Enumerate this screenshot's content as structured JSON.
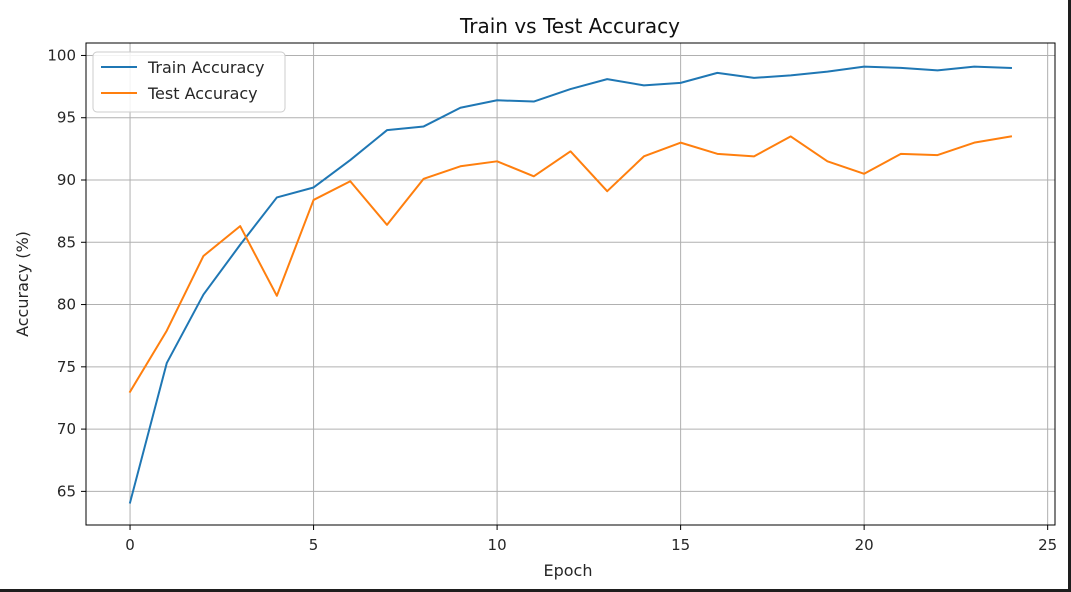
{
  "chart_data": {
    "type": "line",
    "title": "Train vs Test Accuracy",
    "xlabel": "Epoch",
    "ylabel": "Accuracy (%)",
    "xlim": [
      -1.2,
      25.2
    ],
    "ylim": [
      62.3,
      101
    ],
    "x_ticks": [
      0,
      5,
      10,
      15,
      20,
      25
    ],
    "y_ticks": [
      65,
      70,
      75,
      80,
      85,
      90,
      95,
      100
    ],
    "grid": true,
    "legend_position": "upper-left",
    "x": [
      0,
      1,
      2,
      3,
      4,
      5,
      6,
      7,
      8,
      9,
      10,
      11,
      12,
      13,
      14,
      15,
      16,
      17,
      18,
      19,
      20,
      21,
      22,
      23,
      24
    ],
    "series": [
      {
        "name": "Train Accuracy",
        "color": "#1f77b4",
        "values": [
          64.1,
          75.3,
          80.8,
          84.8,
          88.6,
          89.4,
          91.6,
          94.0,
          94.3,
          95.8,
          96.4,
          96.3,
          97.3,
          98.1,
          97.6,
          97.8,
          98.6,
          98.2,
          98.4,
          98.7,
          99.1,
          99.0,
          98.8,
          99.1,
          99.0
        ]
      },
      {
        "name": "Test Accuracy",
        "color": "#ff7f0e",
        "values": [
          73.0,
          77.9,
          83.9,
          86.3,
          80.7,
          88.4,
          89.9,
          86.4,
          90.1,
          91.1,
          91.5,
          90.3,
          92.3,
          89.1,
          91.9,
          93.0,
          92.1,
          91.9,
          93.5,
          91.5,
          90.5,
          92.1,
          92.0,
          93.0,
          93.5
        ]
      }
    ]
  }
}
